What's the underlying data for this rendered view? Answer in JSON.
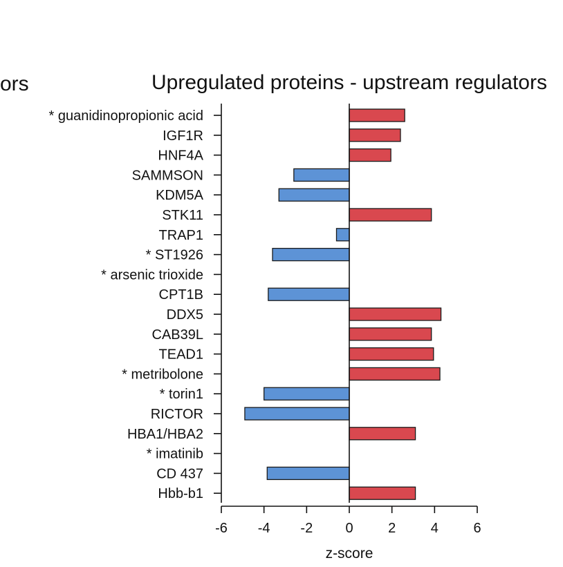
{
  "partial_title": "ors",
  "chart_data": {
    "type": "bar",
    "orientation": "horizontal",
    "title": "Upregulated proteins - upstream regulators",
    "xlabel": "z-score",
    "ylabel": "",
    "xlim": [
      -6,
      6
    ],
    "xticks": [
      "-6",
      "-4",
      "-2",
      "0",
      "2",
      "4",
      "6"
    ],
    "categories": [
      "* guanidinopropionic acid",
      "IGF1R",
      "HNF4A",
      "SAMMSON",
      "KDM5A",
      "STK11",
      "TRAP1",
      "* ST1926",
      "* arsenic trioxide",
      "CPT1B",
      "DDX5",
      "CAB39L",
      "TEAD1",
      "* metribolone",
      "* torin1",
      "RICTOR",
      "HBA1/HBA2",
      "* imatinib",
      "CD 437",
      "Hbb-b1"
    ],
    "values": [
      2.6,
      2.4,
      1.95,
      -2.6,
      -3.3,
      3.85,
      -0.6,
      -3.6,
      0,
      -3.8,
      4.3,
      3.85,
      3.95,
      4.25,
      -4.0,
      -4.9,
      3.1,
      0,
      -3.85,
      3.1
    ],
    "colors": {
      "positive": "#d9484f",
      "negative": "#5d93d6"
    },
    "grid": false,
    "legend": "none"
  }
}
